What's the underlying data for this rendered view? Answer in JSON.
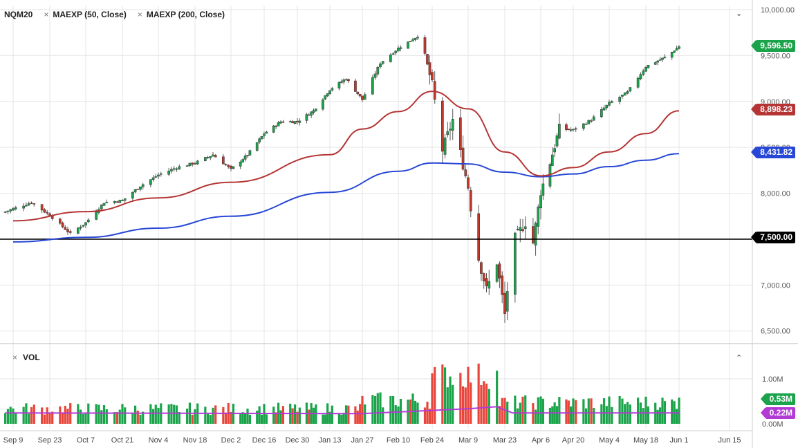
{
  "legend": {
    "symbol": "NQM20",
    "ma50": "MAEXP (50, Close)",
    "ma200": "MAEXP (200, Close)",
    "close_glyph": "×",
    "collapse_glyph": "⌄"
  },
  "volume_panel": {
    "label": "VOL",
    "close_glyph": "×",
    "expand_glyph": "⌃"
  },
  "price_axis": {
    "ticks": [
      "10,000.00",
      "9,500.00",
      "9,000.00",
      "8,500.00",
      "8,000.00",
      "7,500.00",
      "7,000.00",
      "6,500.00"
    ]
  },
  "volume_axis": {
    "ticks": [
      "1.00M",
      "0.00M"
    ]
  },
  "time_axis": {
    "ticks": [
      "Sep 9",
      "Sep 23",
      "Oct 7",
      "Oct 21",
      "Nov 4",
      "Nov 18",
      "Dec 2",
      "Dec 16",
      "Dec 30",
      "Jan 13",
      "Jan 27",
      "Feb 10",
      "Feb 24",
      "Mar 9",
      "Mar 23",
      "Apr 6",
      "Apr 20",
      "May 4",
      "May 18",
      "Jun 1",
      "Jun 15"
    ]
  },
  "price_tags": {
    "last": "9,596.50",
    "ma50": "8,898.23",
    "ma200": "8,431.82",
    "level": "7,500.00",
    "volume": "0.53M",
    "volume_ma": "0.22M"
  },
  "colors": {
    "up": "#1aa34a",
    "down": "#c0392b",
    "ma50": "#b53434",
    "ma200": "#2747d6",
    "level_line": "#000000",
    "volume_ma": "#b13bd4",
    "grid": "#e6e6e6"
  },
  "chart_data": {
    "type": "candlestick",
    "symbol": "NQM20",
    "ylim": [
      6400,
      10000
    ],
    "horizontal_level": 7500,
    "anchors": [
      {
        "date": "Sep 9",
        "close": 7830
      },
      {
        "date": "Sep 16",
        "close": 7900
      },
      {
        "date": "Sep 23",
        "close": 7760
      },
      {
        "date": "Oct 1",
        "close": 7560
      },
      {
        "date": "Oct 7",
        "close": 7680
      },
      {
        "date": "Oct 14",
        "close": 7900
      },
      {
        "date": "Oct 21",
        "close": 7920
      },
      {
        "date": "Oct 28",
        "close": 8080
      },
      {
        "date": "Nov 4",
        "close": 8200
      },
      {
        "date": "Nov 11",
        "close": 8280
      },
      {
        "date": "Nov 18",
        "close": 8330
      },
      {
        "date": "Nov 25",
        "close": 8420
      },
      {
        "date": "Dec 2",
        "close": 8260
      },
      {
        "date": "Dec 9",
        "close": 8420
      },
      {
        "date": "Dec 16",
        "close": 8650
      },
      {
        "date": "Dec 23",
        "close": 8780
      },
      {
        "date": "Dec 30",
        "close": 8780
      },
      {
        "date": "Jan 6",
        "close": 8900
      },
      {
        "date": "Jan 13",
        "close": 9130
      },
      {
        "date": "Jan 20",
        "close": 9250
      },
      {
        "date": "Jan 27",
        "close": 9020
      },
      {
        "date": "Feb 3",
        "close": 9420
      },
      {
        "date": "Feb 10",
        "close": 9580
      },
      {
        "date": "Feb 19",
        "close": 9730
      },
      {
        "date": "Feb 24",
        "close": 9180
      },
      {
        "date": "Feb 28",
        "close": 8470
      },
      {
        "date": "Mar 3",
        "close": 8800
      },
      {
        "date": "Mar 9",
        "close": 8070
      },
      {
        "date": "Mar 12",
        "close": 7400
      },
      {
        "date": "Mar 16",
        "close": 6950
      },
      {
        "date": "Mar 20",
        "close": 7250
      },
      {
        "date": "Mar 23",
        "close": 6680
      },
      {
        "date": "Mar 26",
        "close": 7470
      },
      {
        "date": "Mar 31",
        "close": 7680
      },
      {
        "date": "Apr 3",
        "close": 7460
      },
      {
        "date": "Apr 6",
        "close": 8020
      },
      {
        "date": "Apr 9",
        "close": 8250
      },
      {
        "date": "Apr 14",
        "close": 8700
      },
      {
        "date": "Apr 20",
        "close": 8690
      },
      {
        "date": "Apr 27",
        "close": 8800
      },
      {
        "date": "May 4",
        "close": 8980
      },
      {
        "date": "May 11",
        "close": 9100
      },
      {
        "date": "May 18",
        "close": 9380
      },
      {
        "date": "May 26",
        "close": 9480
      },
      {
        "date": "Jun 1",
        "close": 9596.5
      }
    ],
    "ma50_anchors": [
      {
        "date": "Sep 9",
        "value": 7700
      },
      {
        "date": "Oct 7",
        "value": 7800
      },
      {
        "date": "Nov 4",
        "value": 7950
      },
      {
        "date": "Dec 2",
        "value": 8120
      },
      {
        "date": "Jan 13",
        "value": 8420
      },
      {
        "date": "Jan 27",
        "value": 8700
      },
      {
        "date": "Feb 10",
        "value": 8890
      },
      {
        "date": "Feb 24",
        "value": 9110
      },
      {
        "date": "Mar 9",
        "value": 8920
      },
      {
        "date": "Mar 23",
        "value": 8450
      },
      {
        "date": "Apr 6",
        "value": 8190
      },
      {
        "date": "Apr 20",
        "value": 8280
      },
      {
        "date": "May 4",
        "value": 8450
      },
      {
        "date": "May 18",
        "value": 8650
      },
      {
        "date": "Jun 1",
        "value": 8898.23
      }
    ],
    "ma200_anchors": [
      {
        "date": "Sep 9",
        "value": 7470
      },
      {
        "date": "Oct 7",
        "value": 7520
      },
      {
        "date": "Nov 4",
        "value": 7620
      },
      {
        "date": "Dec 2",
        "value": 7750
      },
      {
        "date": "Jan 13",
        "value": 8010
      },
      {
        "date": "Feb 10",
        "value": 8240
      },
      {
        "date": "Feb 24",
        "value": 8330
      },
      {
        "date": "Mar 9",
        "value": 8320
      },
      {
        "date": "Mar 23",
        "value": 8230
      },
      {
        "date": "Apr 6",
        "value": 8180
      },
      {
        "date": "Apr 20",
        "value": 8210
      },
      {
        "date": "May 4",
        "value": 8290
      },
      {
        "date": "May 18",
        "value": 8360
      },
      {
        "date": "Jun 1",
        "value": 8431.82
      }
    ],
    "volume": {
      "last": 0.53,
      "ma_last": 0.22,
      "ylim": [
        0,
        1.3
      ],
      "levels_by_period": [
        {
          "period": "Sep 9 - Jan 27",
          "typical": 0.3
        },
        {
          "period": "Jan 27 - Feb 19",
          "typical": 0.45
        },
        {
          "period": "Feb 24 - Mar 20",
          "typical": 1.0
        },
        {
          "period": "Mar 23 - Jun 1",
          "typical": 0.45
        }
      ]
    }
  }
}
